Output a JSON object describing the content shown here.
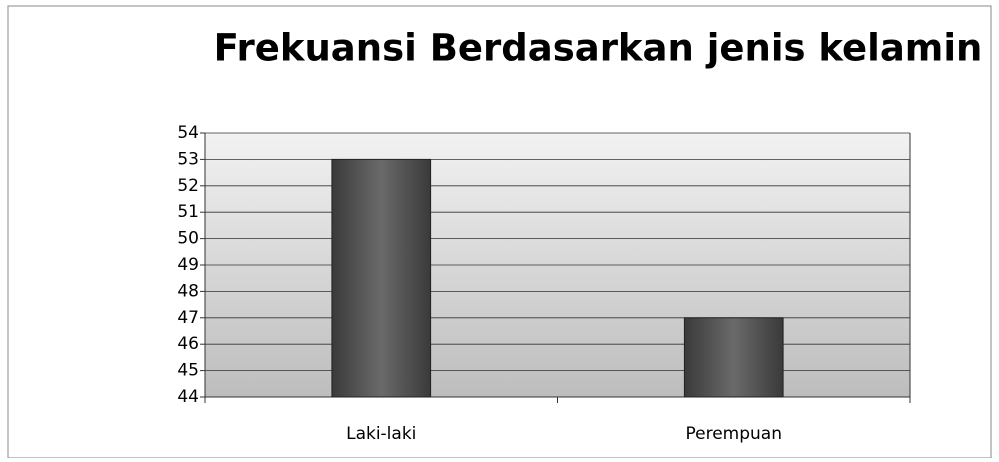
{
  "chart_data": {
    "type": "bar",
    "title": "Frekuansi Berdasarkan jenis kelamin",
    "categories": [
      "Laki-laki",
      "Perempuan"
    ],
    "values": [
      53,
      47
    ],
    "color": "#555555",
    "ylim": [
      44,
      54
    ],
    "yticks": [
      44,
      45,
      46,
      47,
      48,
      49,
      50,
      51,
      52,
      53,
      54
    ],
    "grid": true
  }
}
